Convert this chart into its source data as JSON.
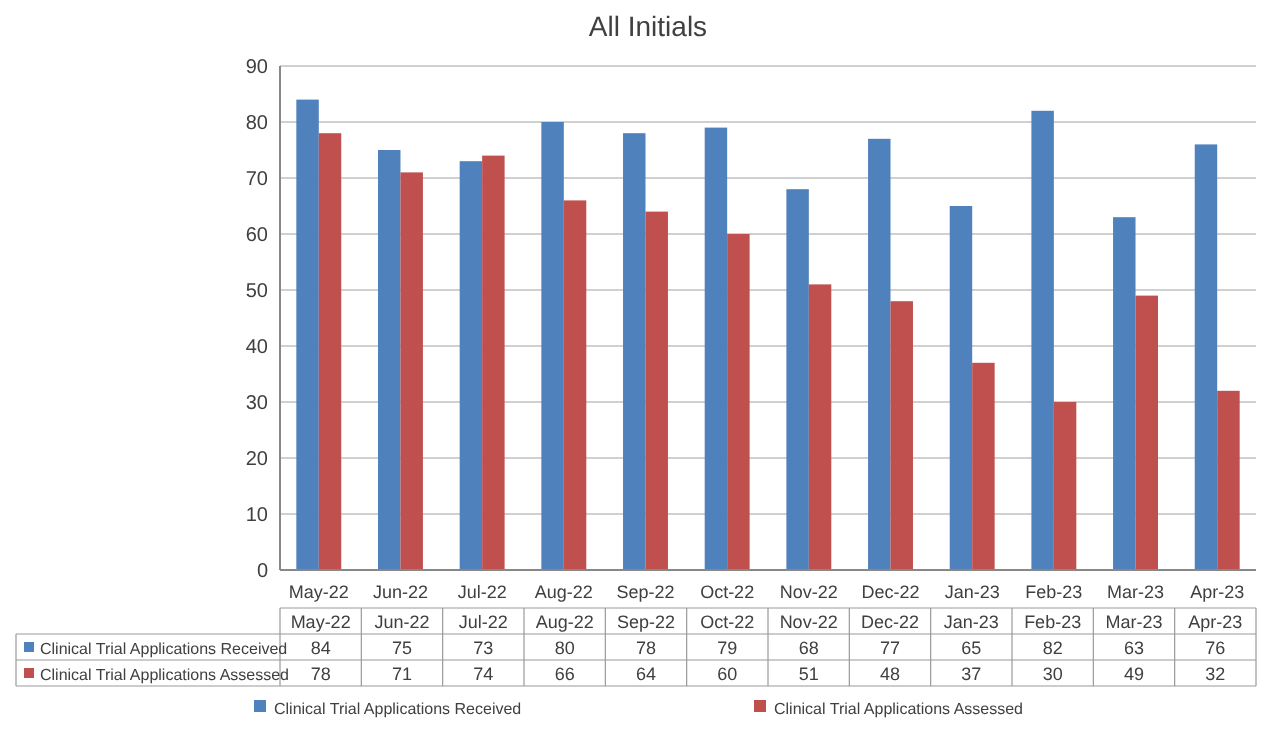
{
  "chart_data": {
    "type": "bar",
    "title": "All Initials",
    "categories": [
      "May-22",
      "Jun-22",
      "Jul-22",
      "Aug-22",
      "Sep-22",
      "Oct-22",
      "Nov-22",
      "Dec-22",
      "Jan-23",
      "Feb-23",
      "Mar-23",
      "Apr-23"
    ],
    "series": [
      {
        "name": "Clinical Trial Applications Received",
        "color": "#4f81bd",
        "values": [
          84,
          75,
          73,
          80,
          78,
          79,
          68,
          77,
          65,
          82,
          63,
          76
        ]
      },
      {
        "name": "Clinical Trial Applications Assessed",
        "color": "#c0504d",
        "values": [
          78,
          71,
          74,
          66,
          64,
          60,
          51,
          48,
          37,
          30,
          49,
          32
        ]
      }
    ],
    "ylim": [
      0,
      90
    ],
    "yticks": [
      0,
      10,
      20,
      30,
      40,
      50,
      60,
      70,
      80,
      90
    ],
    "grid": "y",
    "legend": "bottom",
    "data_labels": true
  }
}
